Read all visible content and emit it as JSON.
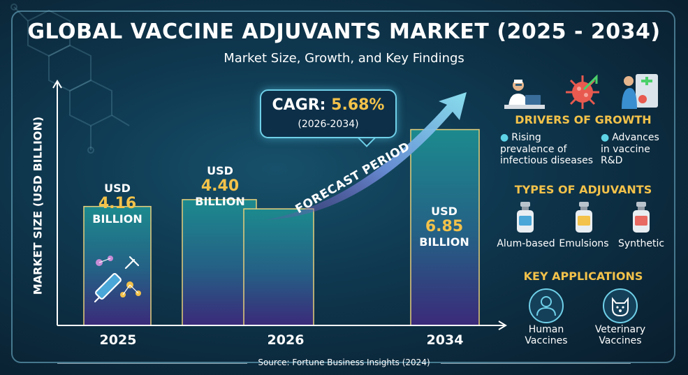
{
  "title": "GLOBAL VACCINE ADJUVANTS MARKET (2025 - 2034)",
  "subtitle": "Market Size, Growth, and Key Findings",
  "cagr": {
    "label": "CAGR:",
    "value": "5.68%",
    "period": "(2026-2034)"
  },
  "forecast_label": "FORECAST PERIOD",
  "bars": [
    {
      "usd": "USD",
      "value": "4.16",
      "unit": "BILLION"
    },
    {
      "usd": "USD",
      "value": "4.40",
      "unit": "BILLION"
    },
    {
      "usd": "USD",
      "value": "6.85",
      "unit": "BILLION"
    }
  ],
  "drivers": {
    "title": "DRIVERS OF GROWTH",
    "items": [
      "Rising prevalence of infectious diseases",
      "Advances in vaccine R&D"
    ]
  },
  "adjuvants": {
    "title": "TYPES OF ADJUVANTS",
    "items": [
      "Alum-based",
      "Emulsions",
      "Synthetic"
    ]
  },
  "applications": {
    "title": "KEY APPLICATIONS",
    "items": [
      "Human Vaccines",
      "Veterinary Vaccines"
    ]
  },
  "source": "Source: Fortune Business Insights (2024)",
  "colors": {
    "accent": "#f3c24a",
    "bar_top": "#1c8a8e",
    "bar_bottom": "#3b2a7a",
    "bar_border": "#e8cf7a",
    "cyan": "#6fd0e8"
  },
  "chart_data": {
    "type": "bar",
    "categories": [
      "2025",
      "2026",
      "2034"
    ],
    "values": [
      4.16,
      4.4,
      6.85
    ],
    "title": "GLOBAL VACCINE ADJUVANTS MARKET (2025 - 2034)",
    "xlabel": "",
    "ylabel": "MARKET SIZE (USD BILLION)",
    "ylim": [
      0,
      8.5
    ],
    "grid": false,
    "annotations": [
      "CAGR: 5.68% (2026-2034)",
      "FORECAST PERIOD"
    ]
  }
}
